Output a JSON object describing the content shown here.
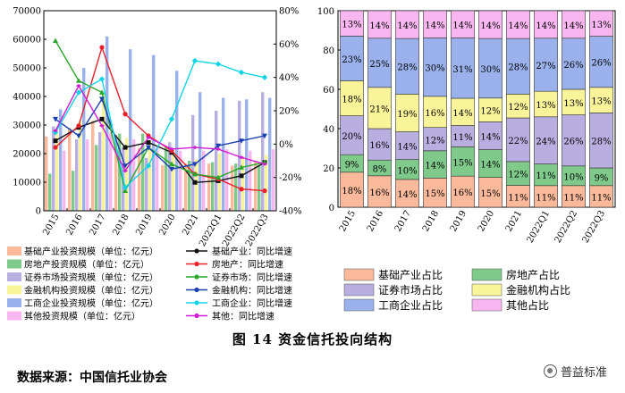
{
  "figure": {
    "caption": "图 14 资金信托投向结构",
    "source": "数据来源：中国信托业协会",
    "watermark": "普益标准"
  },
  "colors": {
    "base_bar": "#f9b99a",
    "realestate_bar": "#7fc98b",
    "securities_bar": "#b9aee0",
    "finance_bar": "#f9f39a",
    "corp_bar": "#9ab1ec",
    "other_bar": "#f7b6ef",
    "base_line": "#111111",
    "realestate_line": "#e8202a",
    "securities_line": "#2ba62b",
    "finance_line": "#1a3fb0",
    "corp_line": "#12d4e6",
    "other_line": "#d01ed3"
  },
  "chart_data": [
    {
      "type": "bar+line",
      "categories": [
        "2015",
        "2016",
        "2017",
        "2018",
        "2019",
        "2020",
        "2021",
        "2022Q1",
        "2022Q2",
        "2022Q3"
      ],
      "ylim": [
        0,
        70000
      ],
      "yticks": [
        "0",
        "10000",
        "20000",
        "30000",
        "40000",
        "50000",
        "60000",
        "70000"
      ],
      "y2lim": [
        -40,
        80
      ],
      "y2ticks": [
        "-40%",
        "-20%",
        "0%",
        "20%",
        "40%",
        "60%",
        "80%"
      ],
      "series": [
        {
          "name": "基础产业投资规模（单位：亿元）",
          "kind": "bar",
          "color": "base_bar",
          "values": [
            26000,
            29000,
            31500,
            26500,
            22000,
            16000,
            16500,
            16500,
            15800,
            17500
          ]
        },
        {
          "name": "房地产投资规模（单位：亿元）",
          "kind": "bar",
          "color": "realestate_bar",
          "values": [
            13000,
            14000,
            23000,
            27000,
            27000,
            22500,
            17500,
            17000,
            16500,
            16000
          ]
        },
        {
          "name": "证券市场投资规模（单位：亿元）",
          "kind": "bar",
          "color": "securities_bar",
          "values": [
            29500,
            25000,
            27500,
            22000,
            18500,
            24000,
            33500,
            35000,
            38500,
            41500
          ]
        },
        {
          "name": "金融机构投资规模（单位：亿元）",
          "kind": "bar",
          "color": "finance_bar",
          "values": [
            27000,
            31500,
            41000,
            25500,
            24500,
            20000,
            18000,
            20000,
            19000,
            19500
          ]
        },
        {
          "name": "工商企业投资规模（单位：亿元）",
          "kind": "bar",
          "color": "corp_bar",
          "values": [
            35500,
            50000,
            61000,
            56500,
            54500,
            49000,
            41500,
            39500,
            39000,
            39500
          ]
        },
        {
          "name": "其他投资规模（单位：亿元）",
          "kind": "bar",
          "color": "other_bar",
          "values": [
            21000,
            25000,
            27500,
            25000,
            22000,
            21000,
            21000,
            21500,
            21000,
            21500
          ]
        },
        {
          "name": "基础产业：同比增速",
          "kind": "line",
          "color": "base_line",
          "values": [
            2,
            10,
            15,
            -2,
            1,
            -5,
            -23,
            -22,
            -19,
            -11
          ]
        },
        {
          "name": "房地产：同比增速",
          "kind": "line",
          "color": "realestate_line",
          "values": [
            -2,
            11,
            58,
            18,
            5,
            -4,
            -18,
            -21,
            -27,
            -28
          ]
        },
        {
          "name": "证券市场：同比增速",
          "kind": "line",
          "color": "securities_line",
          "values": [
            62,
            38,
            31,
            -28,
            -2,
            -12,
            -18,
            -20,
            -14,
            -11
          ]
        },
        {
          "name": "金融机构：同比增速",
          "kind": "line",
          "color": "finance_line",
          "values": [
            15,
            5,
            27,
            -13,
            -2,
            -15,
            -12,
            -1,
            2,
            5
          ]
        },
        {
          "name": "工商企业：同比增速",
          "kind": "line",
          "color": "corp_line",
          "values": [
            7,
            31,
            39,
            -26,
            -13,
            15,
            50,
            48,
            43,
            40
          ]
        },
        {
          "name": "其他：同比增速",
          "kind": "line",
          "color": "other_line",
          "values": [
            8,
            35,
            11,
            -16,
            4,
            -3,
            -2,
            -3,
            -8,
            -12
          ]
        }
      ]
    },
    {
      "type": "stacked-bar-percent",
      "categories": [
        "2015",
        "2016",
        "2017",
        "2018",
        "2019",
        "2020",
        "2021",
        "2022Q1",
        "2022Q2",
        "2022Q3"
      ],
      "ylim": [
        0,
        100
      ],
      "yticks": [
        "0",
        "20",
        "40",
        "60",
        "80",
        "100"
      ],
      "series": [
        {
          "name": "基础产业占比",
          "color": "base_bar",
          "values": [
            18,
            16,
            14,
            15,
            16,
            15,
            11,
            11,
            11,
            11
          ]
        },
        {
          "name": "房地产占比",
          "color": "realestate_bar",
          "values": [
            9,
            8,
            10,
            14,
            15,
            14,
            12,
            11,
            10,
            9
          ]
        },
        {
          "name": "证券市场占比",
          "color": "securities_bar",
          "values": [
            20,
            16,
            14,
            12,
            11,
            14,
            22,
            24,
            26,
            28
          ]
        },
        {
          "name": "金融机构占比",
          "color": "finance_bar",
          "values": [
            18,
            21,
            19,
            16,
            14,
            12,
            12,
            13,
            13,
            13
          ]
        },
        {
          "name": "工商企业占比",
          "color": "corp_bar",
          "values": [
            23,
            25,
            28,
            30,
            31,
            30,
            28,
            27,
            26,
            26
          ]
        },
        {
          "name": "其他占比",
          "color": "other_bar",
          "values": [
            13,
            14,
            14,
            14,
            14,
            14,
            14,
            14,
            14,
            13
          ]
        }
      ]
    }
  ]
}
